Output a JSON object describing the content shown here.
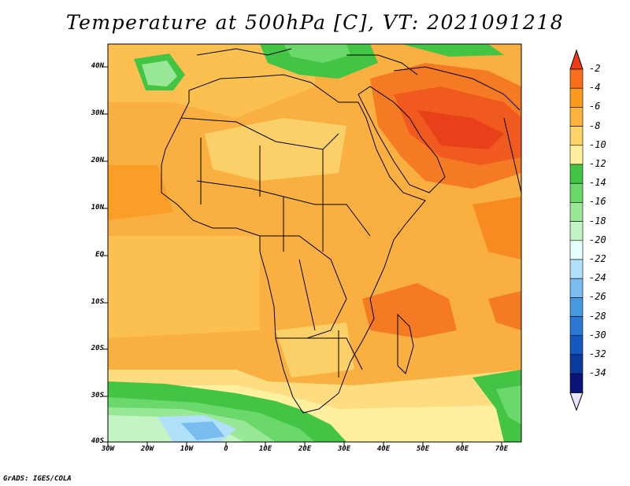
{
  "title": "Temperature at 500hPa [C], VT: 2021091218",
  "credit": "GrADS: IGES/COLA",
  "lat_labels": [
    "40N",
    "30N",
    "20N",
    "10N",
    "EQ",
    "10S",
    "20S",
    "30S",
    "40S"
  ],
  "lon_labels": [
    "30W",
    "20W",
    "10W",
    "0",
    "10E",
    "20E",
    "30E",
    "40E",
    "50E",
    "60E",
    "70E"
  ],
  "colorbar": {
    "labels": [
      "-2",
      "-4",
      "-6",
      "-8",
      "-10",
      "-12",
      "-14",
      "-16",
      "-18",
      "-20",
      "-22",
      "-24",
      "-26",
      "-28",
      "-30",
      "-32",
      "-34"
    ],
    "colors": [
      "#f03c14",
      "#f86e1a",
      "#fa9a1e",
      "#fcb43c",
      "#fed468",
      "#fef09c",
      "#44c444",
      "#6ad86a",
      "#98e898",
      "#c4f4c4",
      "#e6ffff",
      "#b0e0fa",
      "#78bcf0",
      "#4898e0",
      "#2a78d4",
      "#1458c0",
      "#0a3ca0",
      "#0a1478"
    ],
    "min_arrow_color": "#e8e4ff",
    "max_arrow_color": "#f03c14"
  }
}
